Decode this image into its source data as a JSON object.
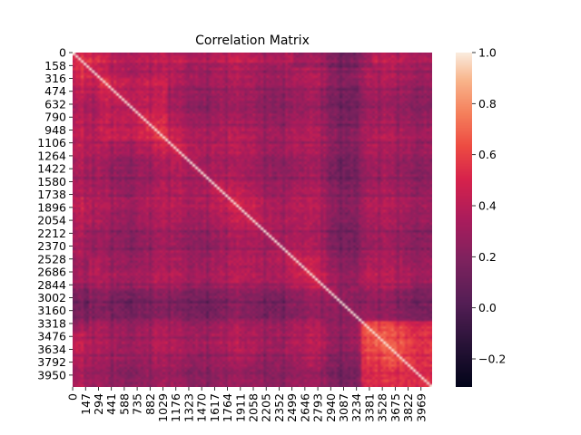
{
  "chart_data": {
    "type": "heatmap",
    "title": "Correlation Matrix",
    "xlabel": "",
    "ylabel": "",
    "matrix_size": 4096,
    "x_tick_labels": [
      "0",
      "147",
      "294",
      "441",
      "588",
      "735",
      "882",
      "1029",
      "1176",
      "1323",
      "1470",
      "1617",
      "1764",
      "1911",
      "2058",
      "2205",
      "2352",
      "2499",
      "2646",
      "2793",
      "2940",
      "3087",
      "3234",
      "3381",
      "3528",
      "3675",
      "3822",
      "3969"
    ],
    "y_tick_labels": [
      "0",
      "158",
      "316",
      "474",
      "632",
      "790",
      "948",
      "1106",
      "1264",
      "1422",
      "1580",
      "1738",
      "1896",
      "2054",
      "2212",
      "2370",
      "2528",
      "2686",
      "2844",
      "3002",
      "3160",
      "3318",
      "3476",
      "3634",
      "3792",
      "3950"
    ],
    "colorbar": {
      "colormap": "rocket",
      "vmin": -0.31,
      "vmax": 1.0,
      "ticks": [
        -0.2,
        0.0,
        0.2,
        0.4,
        0.6,
        0.8,
        1.0
      ],
      "tick_labels": [
        "−0.2",
        "0.0",
        "0.2",
        "0.4",
        "0.6",
        "0.8",
        "1.0"
      ]
    },
    "value_summary": {
      "typical_range": [
        0.15,
        0.45
      ],
      "diagonal": 1.0,
      "high_correlation_block": [
        3300,
        4096
      ],
      "low_correlation_band": [
        2900,
        3250
      ]
    }
  }
}
